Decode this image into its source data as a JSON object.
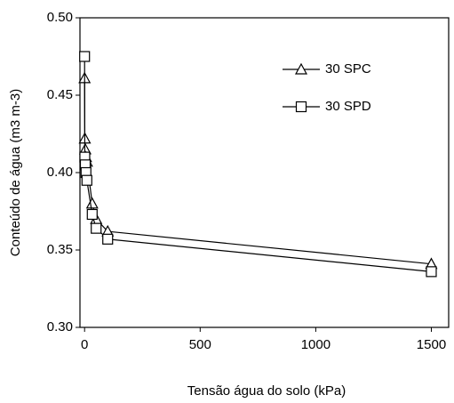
{
  "chart_data": {
    "type": "line",
    "x_label": "Tensão água do solo (kPa)",
    "y_label": "Conteúdo de água (m3 m-3)",
    "x": [
      0,
      1,
      3,
      6,
      10,
      33,
      50,
      100,
      1500
    ],
    "series": [
      {
        "name": "30 SPC",
        "color": "#000000",
        "marker": "triangle",
        "values": [
          0.461,
          0.422,
          0.415,
          0.41,
          0.407,
          0.38,
          0.37,
          0.362,
          0.341
        ]
      },
      {
        "name": "30 SPD",
        "color": "#000000",
        "marker": "square",
        "values": [
          0.475,
          0.41,
          0.405,
          0.4,
          0.395,
          0.373,
          0.364,
          0.357,
          0.336
        ]
      }
    ],
    "xlim": [
      -20,
      1575
    ],
    "xticks": [
      0,
      500,
      1000,
      1500
    ],
    "ylim": [
      0.3,
      0.5
    ],
    "yticks": [
      {
        "value": 0.3,
        "label": "0.30"
      },
      {
        "value": 0.35,
        "label": "0.35"
      },
      {
        "value": 0.4,
        "label": "0.40"
      },
      {
        "value": 0.45,
        "label": "0.45"
      },
      {
        "value": 0.5,
        "label": "0.50"
      }
    ],
    "legend": "top-right"
  }
}
